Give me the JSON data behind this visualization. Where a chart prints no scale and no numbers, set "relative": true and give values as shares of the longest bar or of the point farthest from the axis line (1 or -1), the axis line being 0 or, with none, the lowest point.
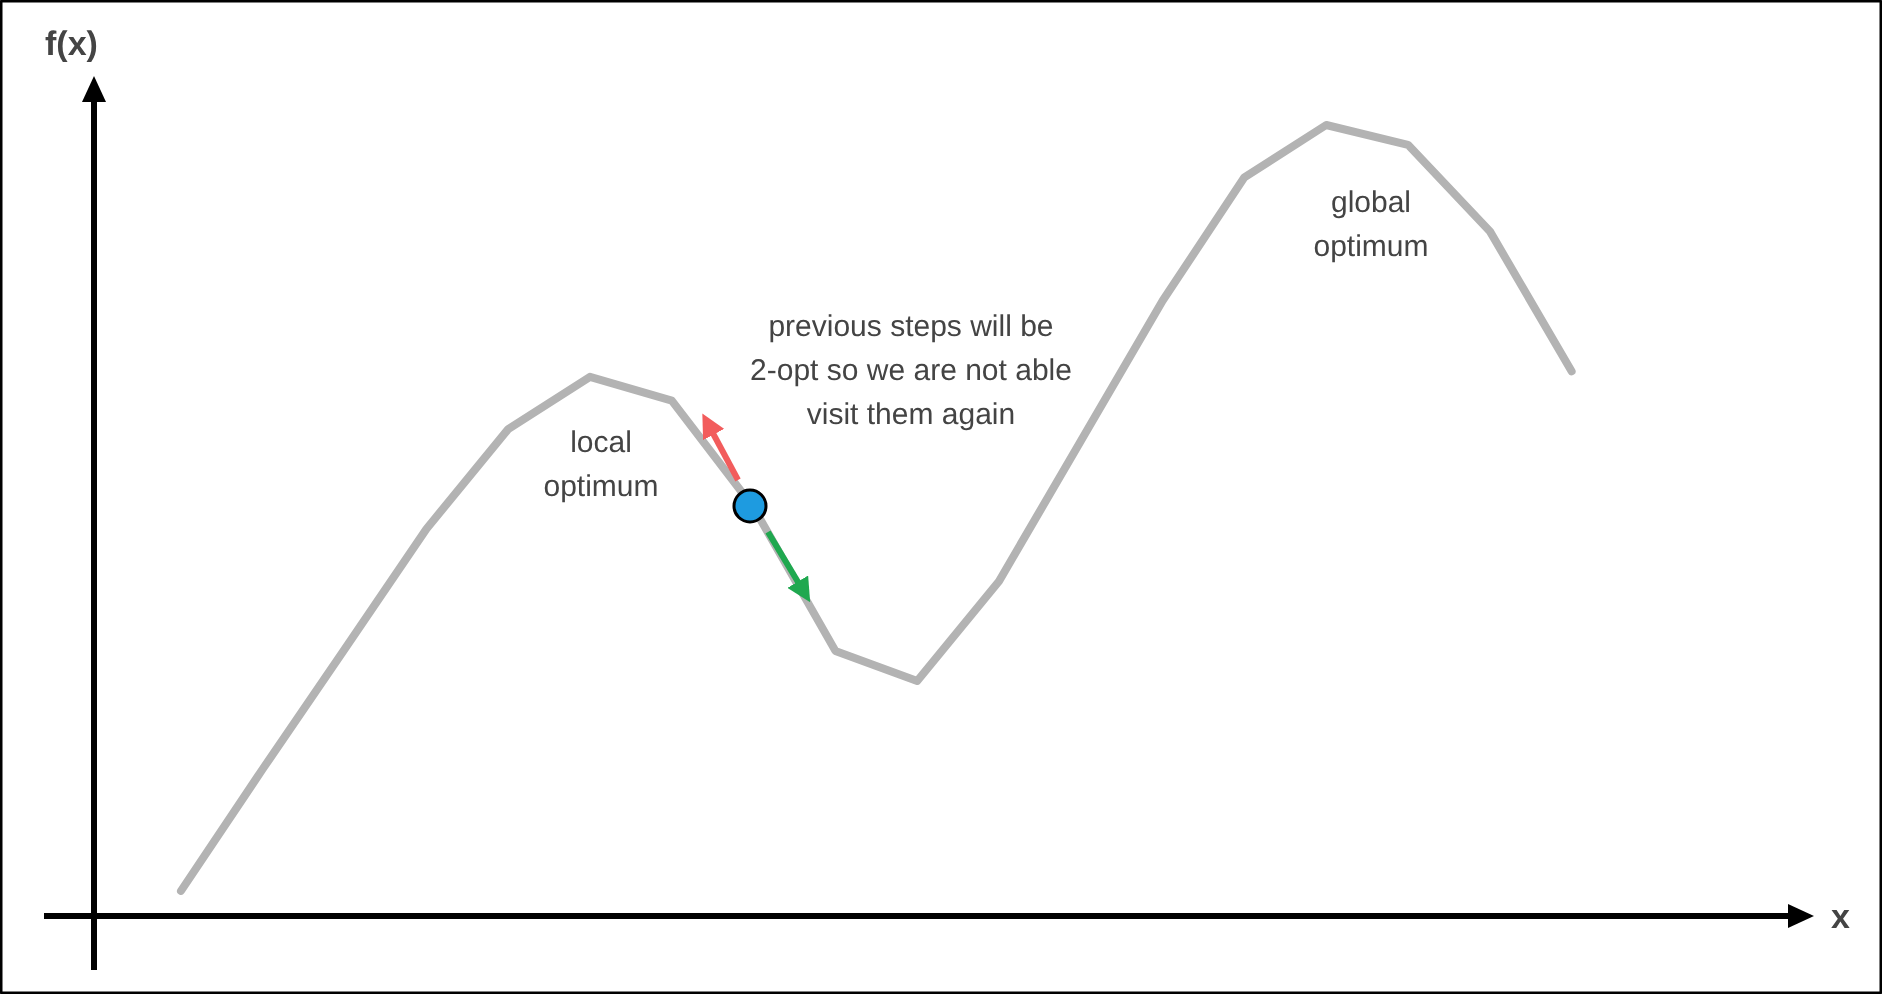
{
  "chart_data": {
    "type": "line",
    "relative": true,
    "ylabel": "f(x)",
    "categories": [
      null,
      null,
      null,
      null,
      null,
      null,
      null,
      null,
      null,
      null,
      null,
      null,
      null,
      null,
      null,
      null,
      null,
      null
    ],
    "series": [
      {
        "color": "#b3b3b3",
        "values": [
          0.033,
          0.187,
          0.338,
          0.49,
          0.616,
          0.682,
          0.652,
          0.517,
          0.336,
          0.298,
          0.424,
          0.601,
          0.778,
          0.934,
          1.0,
          0.975,
          0.866,
          0.689
        ]
      }
    ],
    "annotations": [
      "local\noptimum",
      "global\noptimum",
      "previous steps will be\n2-opt so we are not able\nvisit them again",
      "x"
    ],
    "marker": "none",
    "line_style": "solid"
  }
}
